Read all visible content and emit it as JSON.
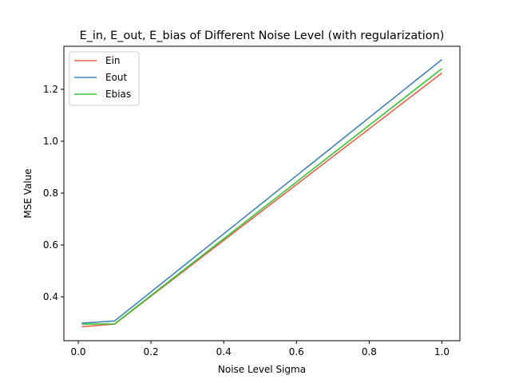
{
  "chart_data": {
    "type": "line",
    "title": "E_in, E_out, E_bias of Different Noise Level (with regularization)",
    "xlabel": "Noise Level Sigma",
    "ylabel": "MSE Value",
    "xlim": [
      -0.0395,
      1.0495
    ],
    "ylim": [
      0.231,
      1.366
    ],
    "xticks": [
      0.0,
      0.2,
      0.4,
      0.6,
      0.8,
      1.0
    ],
    "xtick_labels": [
      "0.0",
      "0.2",
      "0.4",
      "0.6",
      "0.8",
      "1.0"
    ],
    "yticks": [
      0.4,
      0.6,
      0.8,
      1.0,
      1.2
    ],
    "ytick_labels": [
      "0.4",
      "0.6",
      "0.8",
      "1.0",
      "1.2"
    ],
    "grid": false,
    "legend_position": "upper-left",
    "x": [
      0.01,
      0.1,
      1.0
    ],
    "series": [
      {
        "name": "Ein",
        "color": "#e8604c",
        "values": [
          0.285,
          0.295,
          1.263
        ]
      },
      {
        "name": "Eout",
        "color": "#4682b4",
        "values": [
          0.299,
          0.307,
          1.315
        ]
      },
      {
        "name": "Ebias",
        "color": "#33c733",
        "values": [
          0.295,
          0.296,
          1.28
        ]
      }
    ]
  }
}
